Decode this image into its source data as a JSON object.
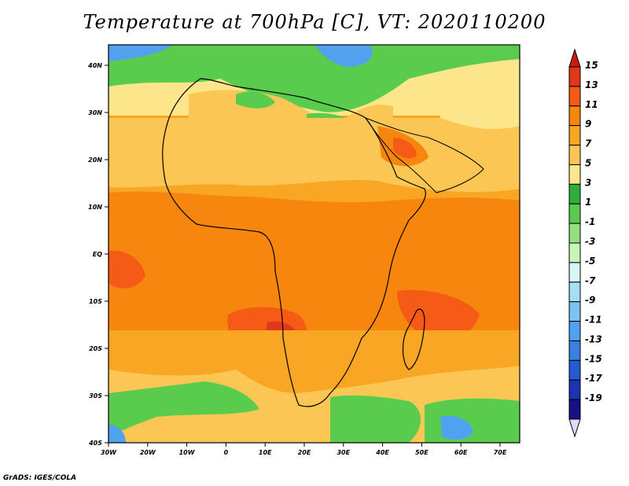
{
  "title": "Temperature at 700hPa [C], VT: 2020110200",
  "credit": "GrADS: IGES/COLA",
  "map": {
    "lat_labels": [
      "40N",
      "30N",
      "20N",
      "10N",
      "EQ",
      "10S",
      "20S",
      "30S",
      "40S"
    ],
    "lon_labels": [
      "30W",
      "20W",
      "10W",
      "0",
      "10E",
      "20E",
      "30E",
      "40E",
      "50E",
      "60E",
      "70E"
    ]
  },
  "colorbar": {
    "labels": [
      "15",
      "13",
      "11",
      "9",
      "7",
      "5",
      "3",
      "1",
      "-1",
      "-3",
      "-5",
      "-7",
      "-9",
      "-11",
      "-13",
      "-15",
      "-17",
      "-19"
    ],
    "colors": [
      "#e0361b",
      "#f55a16",
      "#f7860f",
      "#f9a624",
      "#fbc654",
      "#fde68a",
      "#2faf3a",
      "#59cc4d",
      "#95e07e",
      "#c9f3b9",
      "#d6f6f6",
      "#a9def7",
      "#7dc2f3",
      "#51a2ee",
      "#3a80e0",
      "#245bd1",
      "#1a34b5",
      "#161285"
    ],
    "top_arrow_color": "#c81b16",
    "bottom_arrow_color": "#dcdcfa"
  }
}
